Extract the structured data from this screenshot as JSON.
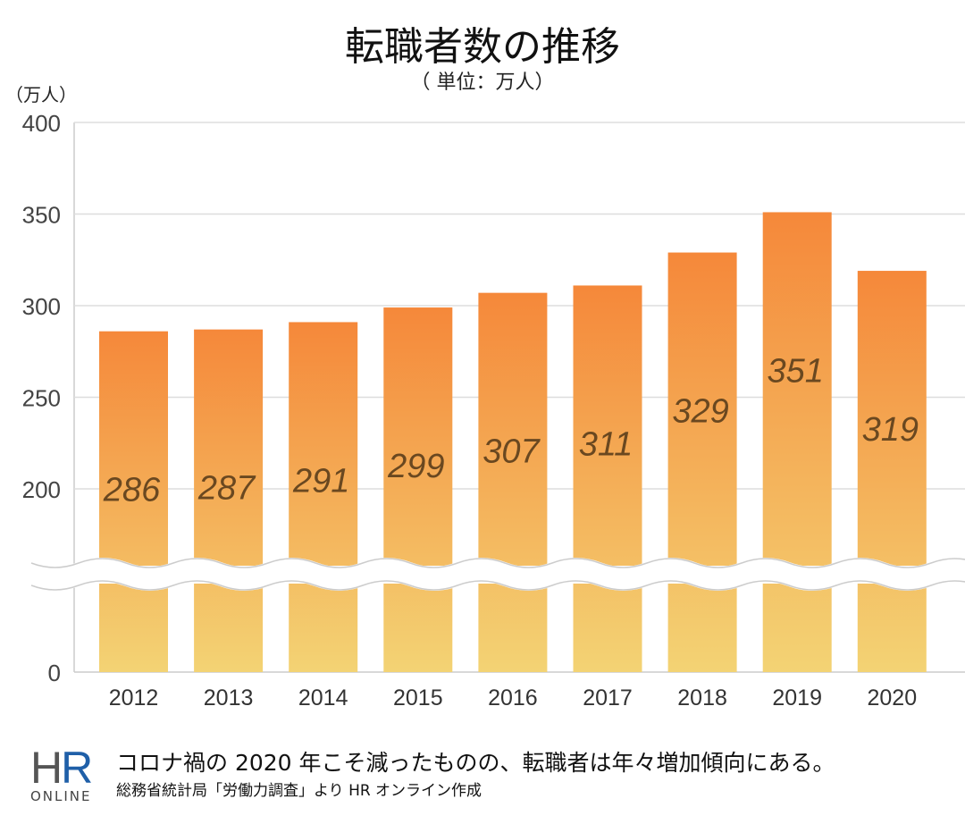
{
  "chart_data": {
    "type": "bar",
    "title": "転職者数の推移",
    "subtitle": "（ 単位：万人）",
    "ylabel": "（万人）",
    "xlabel": "",
    "categories": [
      "2012",
      "2013",
      "2014",
      "2015",
      "2016",
      "2017",
      "2018",
      "2019",
      "2020"
    ],
    "values": [
      286,
      287,
      291,
      299,
      307,
      311,
      329,
      351,
      319
    ],
    "y_ticks": [
      "400",
      "350",
      "300",
      "250",
      "200",
      "0"
    ],
    "ylim": [
      0,
      400
    ],
    "axis_break": [
      0,
      200
    ],
    "grid": true,
    "colors": {
      "bar_top": "#f5883a",
      "bar_bottom": "#f3d374",
      "label": "#6a4820"
    }
  },
  "footer": {
    "logo": "HR ONLINE",
    "note": "コロナ禍の 2020 年こそ減ったものの、転職者は年々増加傾向にある。",
    "source": "総務省統計局「労働力調査」より HR オンライン作成"
  }
}
